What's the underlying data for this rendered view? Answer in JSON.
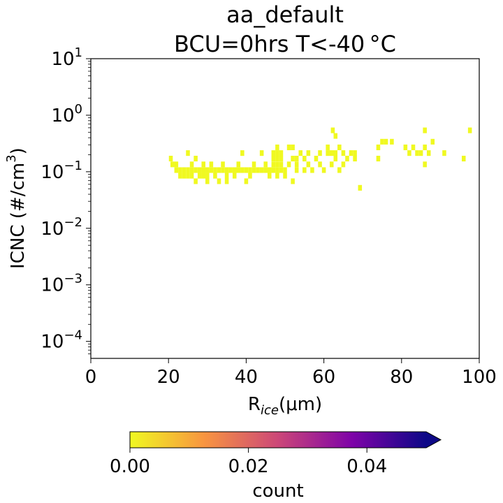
{
  "chart_data": {
    "type": "heatmap",
    "title": "aa_default",
    "subtitle": "BCU=0hrs T<-40 °C",
    "xlabel": {
      "base": "R",
      "sub": "ice",
      "rest": "(μm)"
    },
    "ylabel": {
      "base": "ICNC (#/cm",
      "sup": "3",
      "rest": ")"
    },
    "xlim": [
      0,
      100
    ],
    "x_ticks": [
      0,
      20,
      40,
      60,
      80,
      100
    ],
    "x_tick_labels": [
      "0",
      "20",
      "40",
      "60",
      "80",
      "100"
    ],
    "ylim": [
      5e-05,
      10
    ],
    "y_scale": "log",
    "y_ticks": [
      0.0001,
      0.001,
      0.01,
      0.1,
      1,
      10
    ],
    "y_tick_labels": [
      {
        "base": "10",
        "exp": "−4"
      },
      {
        "base": "10",
        "exp": "−3"
      },
      {
        "base": "10",
        "exp": "−2"
      },
      {
        "base": "10",
        "exp": "−1"
      },
      {
        "base": "10",
        "exp": "0"
      },
      {
        "base": "10",
        "exp": "1"
      }
    ],
    "colorbar": {
      "label": "count",
      "colormap": "plasma_r",
      "range": [
        0,
        0.05
      ],
      "ticks": [
        0.0,
        0.02,
        0.04
      ],
      "tick_labels": [
        "0.00",
        "0.02",
        "0.04"
      ],
      "extend": "max",
      "colors": [
        "#f0f921",
        "#f89540",
        "#cc4778",
        "#7e03a8",
        "#0d0887"
      ]
    },
    "cell_color": "#f0f921",
    "cell_width_um": 1,
    "cell_height_log10": 0.1,
    "cells": [
      [
        20.6,
        0.171
      ],
      [
        21.0,
        0.135
      ],
      [
        22.0,
        0.107
      ],
      [
        22.0,
        0.135
      ],
      [
        23.0,
        0.107
      ],
      [
        23.0,
        0.085
      ],
      [
        24.0,
        0.107
      ],
      [
        24.0,
        0.085
      ],
      [
        25.0,
        0.107
      ],
      [
        25.0,
        0.214
      ],
      [
        25.0,
        0.085
      ],
      [
        26.0,
        0.107
      ],
      [
        26.0,
        0.135
      ],
      [
        26.0,
        0.085
      ],
      [
        27.0,
        0.107
      ],
      [
        27.0,
        0.171
      ],
      [
        27.0,
        0.068
      ],
      [
        28.0,
        0.107
      ],
      [
        28.0,
        0.085
      ],
      [
        29.0,
        0.107
      ],
      [
        29.0,
        0.135
      ],
      [
        29.0,
        0.085
      ],
      [
        30.0,
        0.107
      ],
      [
        30.0,
        0.085
      ],
      [
        30.0,
        0.068
      ],
      [
        31.0,
        0.107
      ],
      [
        31.0,
        0.135
      ],
      [
        32.0,
        0.107
      ],
      [
        32.0,
        0.085
      ],
      [
        33.0,
        0.107
      ],
      [
        33.0,
        0.068
      ],
      [
        34.0,
        0.107
      ],
      [
        34.0,
        0.135
      ],
      [
        35.0,
        0.107
      ],
      [
        35.0,
        0.085
      ],
      [
        35.0,
        0.068
      ],
      [
        36.0,
        0.107
      ],
      [
        37.0,
        0.107
      ],
      [
        37.0,
        0.085
      ],
      [
        38.0,
        0.107
      ],
      [
        38.0,
        0.135
      ],
      [
        39.0,
        0.107
      ],
      [
        39.0,
        0.214
      ],
      [
        40.0,
        0.107
      ],
      [
        40.0,
        0.068
      ],
      [
        41.0,
        0.107
      ],
      [
        41.0,
        0.085
      ],
      [
        42.0,
        0.107
      ],
      [
        42.0,
        0.135
      ],
      [
        43.0,
        0.107
      ],
      [
        44.0,
        0.107
      ],
      [
        44.0,
        0.214
      ],
      [
        45.0,
        0.107
      ],
      [
        45.0,
        0.135
      ],
      [
        46.0,
        0.107
      ],
      [
        46.0,
        0.085
      ],
      [
        47.0,
        0.107
      ],
      [
        47.0,
        0.135
      ],
      [
        47.0,
        0.171
      ],
      [
        47.0,
        0.214
      ],
      [
        48.0,
        0.107
      ],
      [
        48.0,
        0.135
      ],
      [
        48.0,
        0.171
      ],
      [
        48.0,
        0.214
      ],
      [
        48.0,
        0.27
      ],
      [
        48.0,
        0.085
      ],
      [
        49.0,
        0.107
      ],
      [
        49.0,
        0.135
      ],
      [
        49.0,
        0.171
      ],
      [
        49.0,
        0.214
      ],
      [
        50.0,
        0.085
      ],
      [
        50.0,
        0.107
      ],
      [
        51.0,
        0.135
      ],
      [
        51.0,
        0.27
      ],
      [
        52.0,
        0.171
      ],
      [
        52.0,
        0.27
      ],
      [
        52.0,
        0.068
      ],
      [
        53.0,
        0.107
      ],
      [
        53.0,
        0.135
      ],
      [
        53.0,
        0.171
      ],
      [
        54.0,
        0.214
      ],
      [
        55.0,
        0.107
      ],
      [
        55.0,
        0.171
      ],
      [
        56.0,
        0.214
      ],
      [
        56.0,
        0.135
      ],
      [
        57.0,
        0.107
      ],
      [
        58.0,
        0.171
      ],
      [
        59.0,
        0.214
      ],
      [
        59.0,
        0.135
      ],
      [
        60.0,
        0.107
      ],
      [
        61.0,
        0.214
      ],
      [
        61.0,
        0.27
      ],
      [
        62.0,
        0.214
      ],
      [
        62.0,
        0.135
      ],
      [
        62.3,
        0.54
      ],
      [
        63.0,
        0.214
      ],
      [
        63.0,
        0.43
      ],
      [
        63.0,
        0.171
      ],
      [
        64.0,
        0.27
      ],
      [
        64.0,
        0.107
      ],
      [
        65.0,
        0.214
      ],
      [
        65.0,
        0.135
      ],
      [
        66.0,
        0.171
      ],
      [
        67.0,
        0.214
      ],
      [
        68.0,
        0.214
      ],
      [
        68.0,
        0.171
      ],
      [
        69.3,
        0.052
      ],
      [
        74.0,
        0.27
      ],
      [
        74.0,
        0.171
      ],
      [
        75.0,
        0.34
      ],
      [
        76.0,
        0.34
      ],
      [
        77.5,
        0.34
      ],
      [
        81.0,
        0.27
      ],
      [
        82.0,
        0.214
      ],
      [
        83.0,
        0.27
      ],
      [
        84.0,
        0.214
      ],
      [
        85.0,
        0.214
      ],
      [
        86.0,
        0.27
      ],
      [
        86.0,
        0.54
      ],
      [
        86.0,
        0.135
      ],
      [
        87.0,
        0.214
      ],
      [
        88.0,
        0.34
      ],
      [
        91.0,
        0.214
      ],
      [
        96.0,
        0.171
      ],
      [
        97.6,
        0.54
      ]
    ]
  }
}
